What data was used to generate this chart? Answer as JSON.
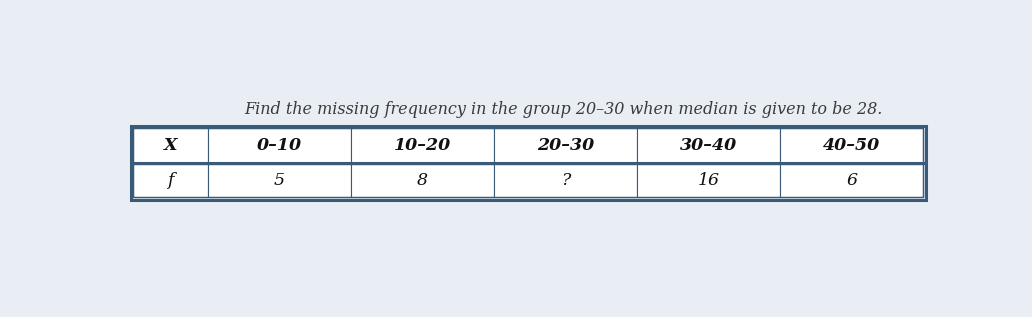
{
  "title": "Find the missing frequency in the group 20–30 when median is given to be 28.",
  "title_fontsize": 11.5,
  "title_color": "#3a3a3a",
  "header_row": [
    "X",
    "0–10",
    "10–20",
    "20–30",
    "30–40",
    "40–50"
  ],
  "data_row": [
    "f",
    "5",
    "8",
    "?",
    "16",
    "6"
  ],
  "table_bg": "#ffffff",
  "text_color": "#111111",
  "border_color": "#3a5a7a",
  "fig_bg": "#e8eef4"
}
